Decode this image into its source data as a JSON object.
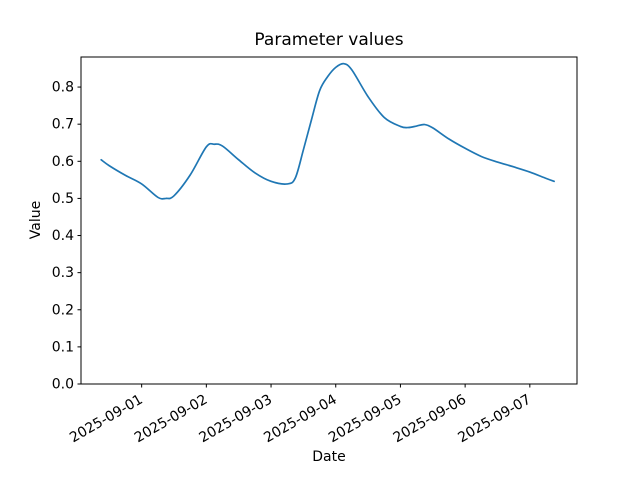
{
  "figure": {
    "background_color": "#ffffff"
  },
  "chart_data": {
    "type": "line",
    "title": "Parameter values",
    "xlabel": "Date",
    "ylabel": "Value",
    "series_color": "#1f77b4",
    "grid": false,
    "legend": "none",
    "x_tick_labels": [
      "2025-09-01",
      "2025-09-02",
      "2025-09-03",
      "2025-09-04",
      "2025-09-05",
      "2025-09-06",
      "2025-09-07"
    ],
    "y_tick_labels": [
      "0.0",
      "0.1",
      "0.2",
      "0.3",
      "0.4",
      "0.5",
      "0.6",
      "0.7",
      "0.8"
    ],
    "xlim": [
      "2025-08-31 01:30",
      "2025-09-07 17:30"
    ],
    "ylim": [
      0.0,
      0.881
    ],
    "x": [
      "2025-08-31 09:00",
      "2025-08-31 12:00",
      "2025-08-31 18:00",
      "2025-09-01 00:00",
      "2025-09-01 06:00",
      "2025-09-01 09:00",
      "2025-09-01 12:00",
      "2025-09-01 18:00",
      "2025-09-02 00:00",
      "2025-09-02 03:00",
      "2025-09-02 06:00",
      "2025-09-02 12:00",
      "2025-09-02 18:00",
      "2025-09-03 00:00",
      "2025-09-03 06:00",
      "2025-09-03 09:00",
      "2025-09-03 12:00",
      "2025-09-03 15:00",
      "2025-09-03 18:00",
      "2025-09-03 21:00",
      "2025-09-04 00:00",
      "2025-09-04 03:00",
      "2025-09-04 06:00",
      "2025-09-04 12:00",
      "2025-09-04 18:00",
      "2025-09-05 00:00",
      "2025-09-05 03:00",
      "2025-09-05 06:00",
      "2025-09-05 09:00",
      "2025-09-05 12:00",
      "2025-09-05 18:00",
      "2025-09-06 00:00",
      "2025-09-06 06:00",
      "2025-09-06 12:00",
      "2025-09-06 18:00",
      "2025-09-07 00:00",
      "2025-09-07 06:00",
      "2025-09-07 09:00"
    ],
    "y": [
      0.604,
      0.588,
      0.562,
      0.539,
      0.503,
      0.5,
      0.507,
      0.563,
      0.639,
      0.646,
      0.641,
      0.604,
      0.569,
      0.546,
      0.539,
      0.555,
      0.631,
      0.712,
      0.79,
      0.828,
      0.853,
      0.863,
      0.846,
      0.774,
      0.718,
      0.694,
      0.691,
      0.695,
      0.699,
      0.69,
      0.66,
      0.635,
      0.613,
      0.598,
      0.585,
      0.571,
      0.554,
      0.546
    ]
  }
}
